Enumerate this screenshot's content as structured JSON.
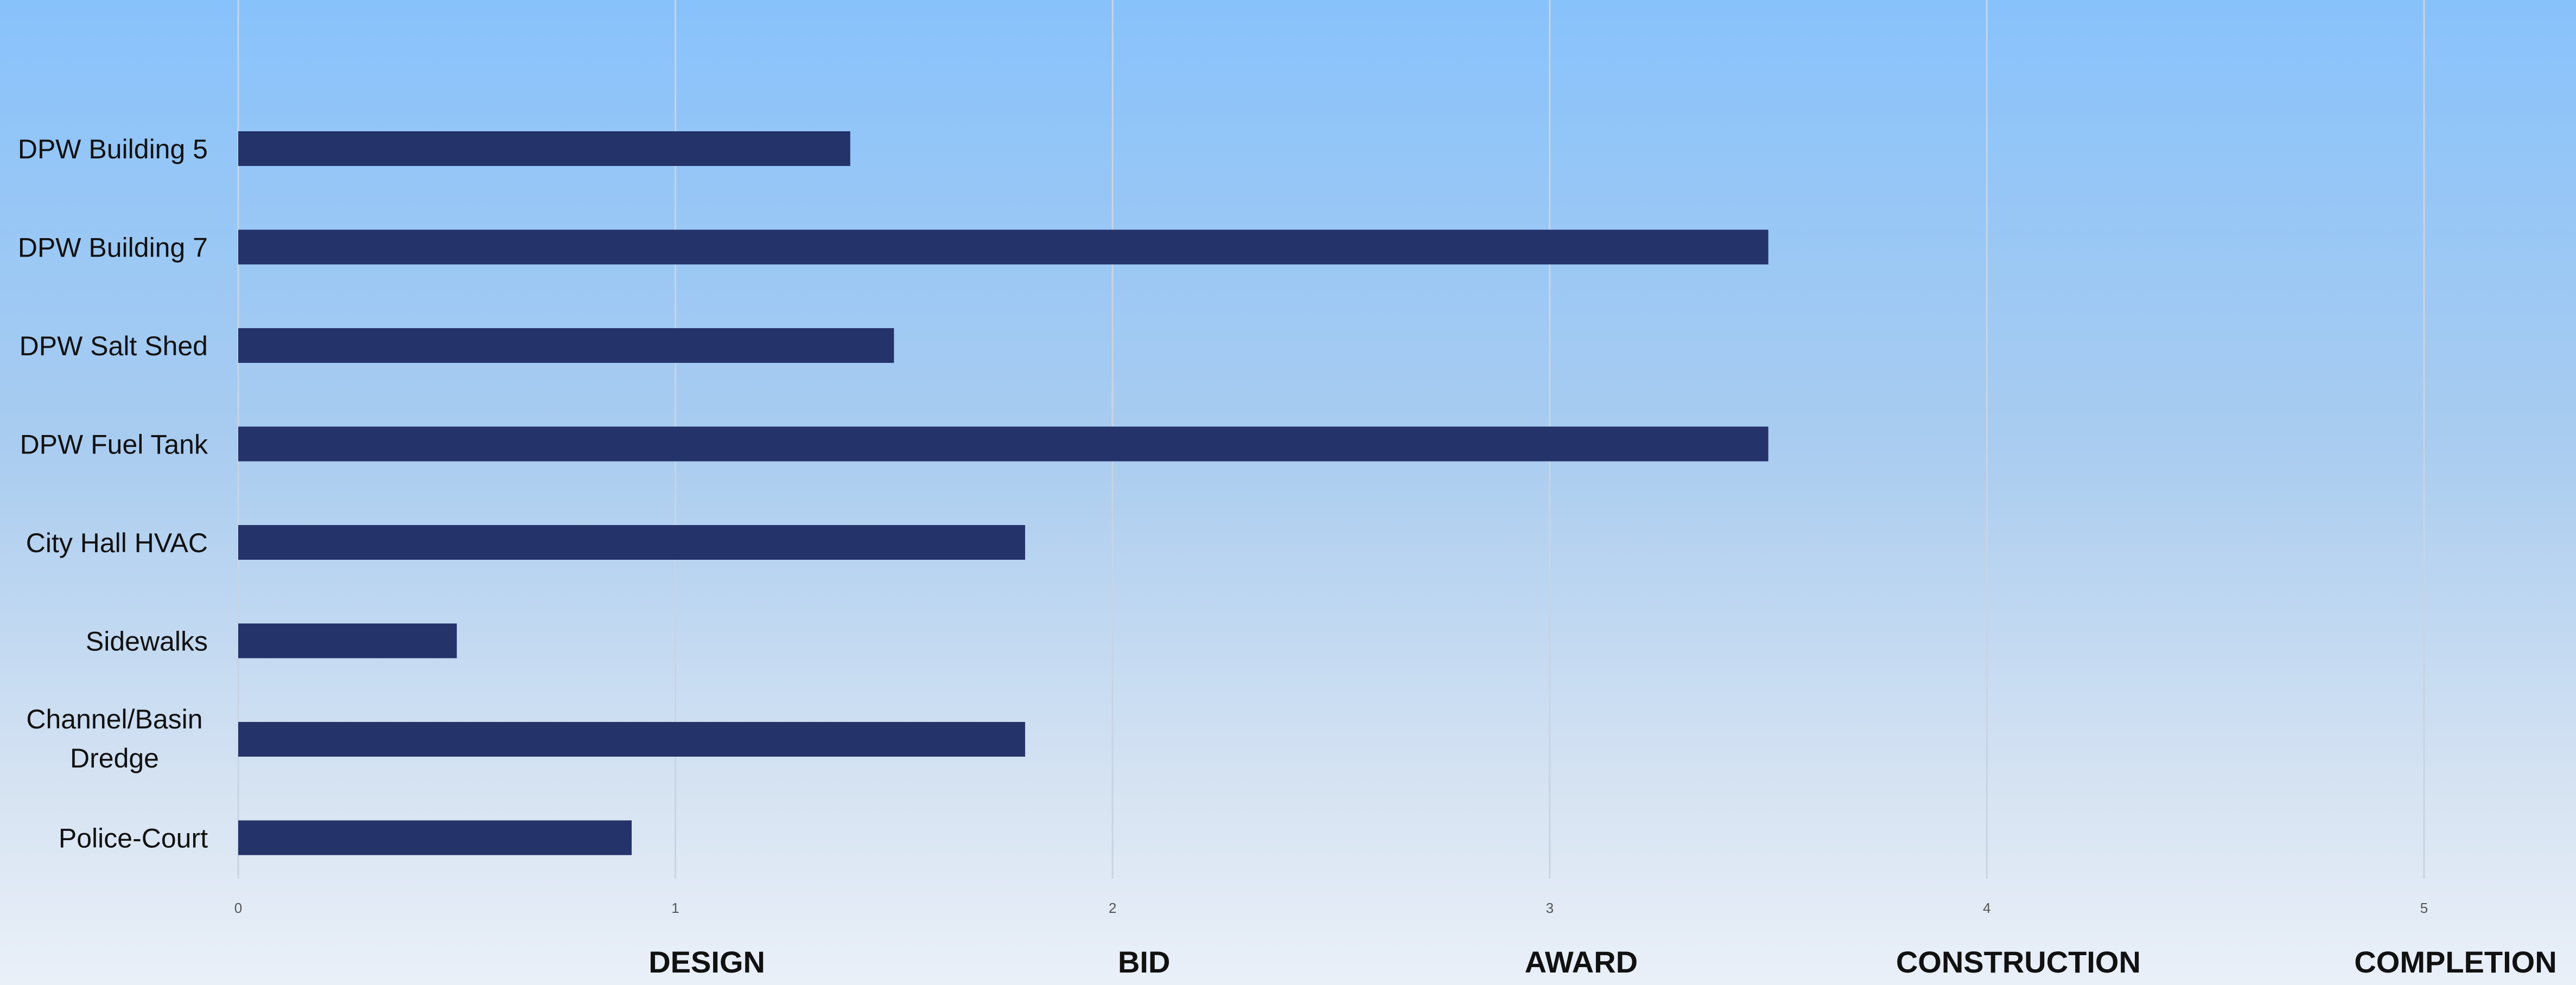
{
  "chart_data": {
    "type": "bar",
    "orientation": "horizontal",
    "categories": [
      "DPW Building 5",
      "DPW Building 7",
      "DPW Salt Shed",
      "DPW Fuel Tank",
      "City Hall HVAC",
      "Sidewalks",
      "Channel/Basin Dredge",
      "Police-Court"
    ],
    "values": [
      1.4,
      3.5,
      1.5,
      3.5,
      1.8,
      0.5,
      1.8,
      0.9
    ],
    "x_ticks": [
      "0",
      "1",
      "2",
      "3",
      "4",
      "5"
    ],
    "xlim": [
      0,
      5
    ],
    "stage_labels": [
      "DESIGN",
      "BID",
      "AWARD",
      "CONSTRUCTION",
      "COMPLETION"
    ],
    "grid": "vertical",
    "bar_color": "#25336b",
    "gridline_color": "#c8d4e4"
  }
}
